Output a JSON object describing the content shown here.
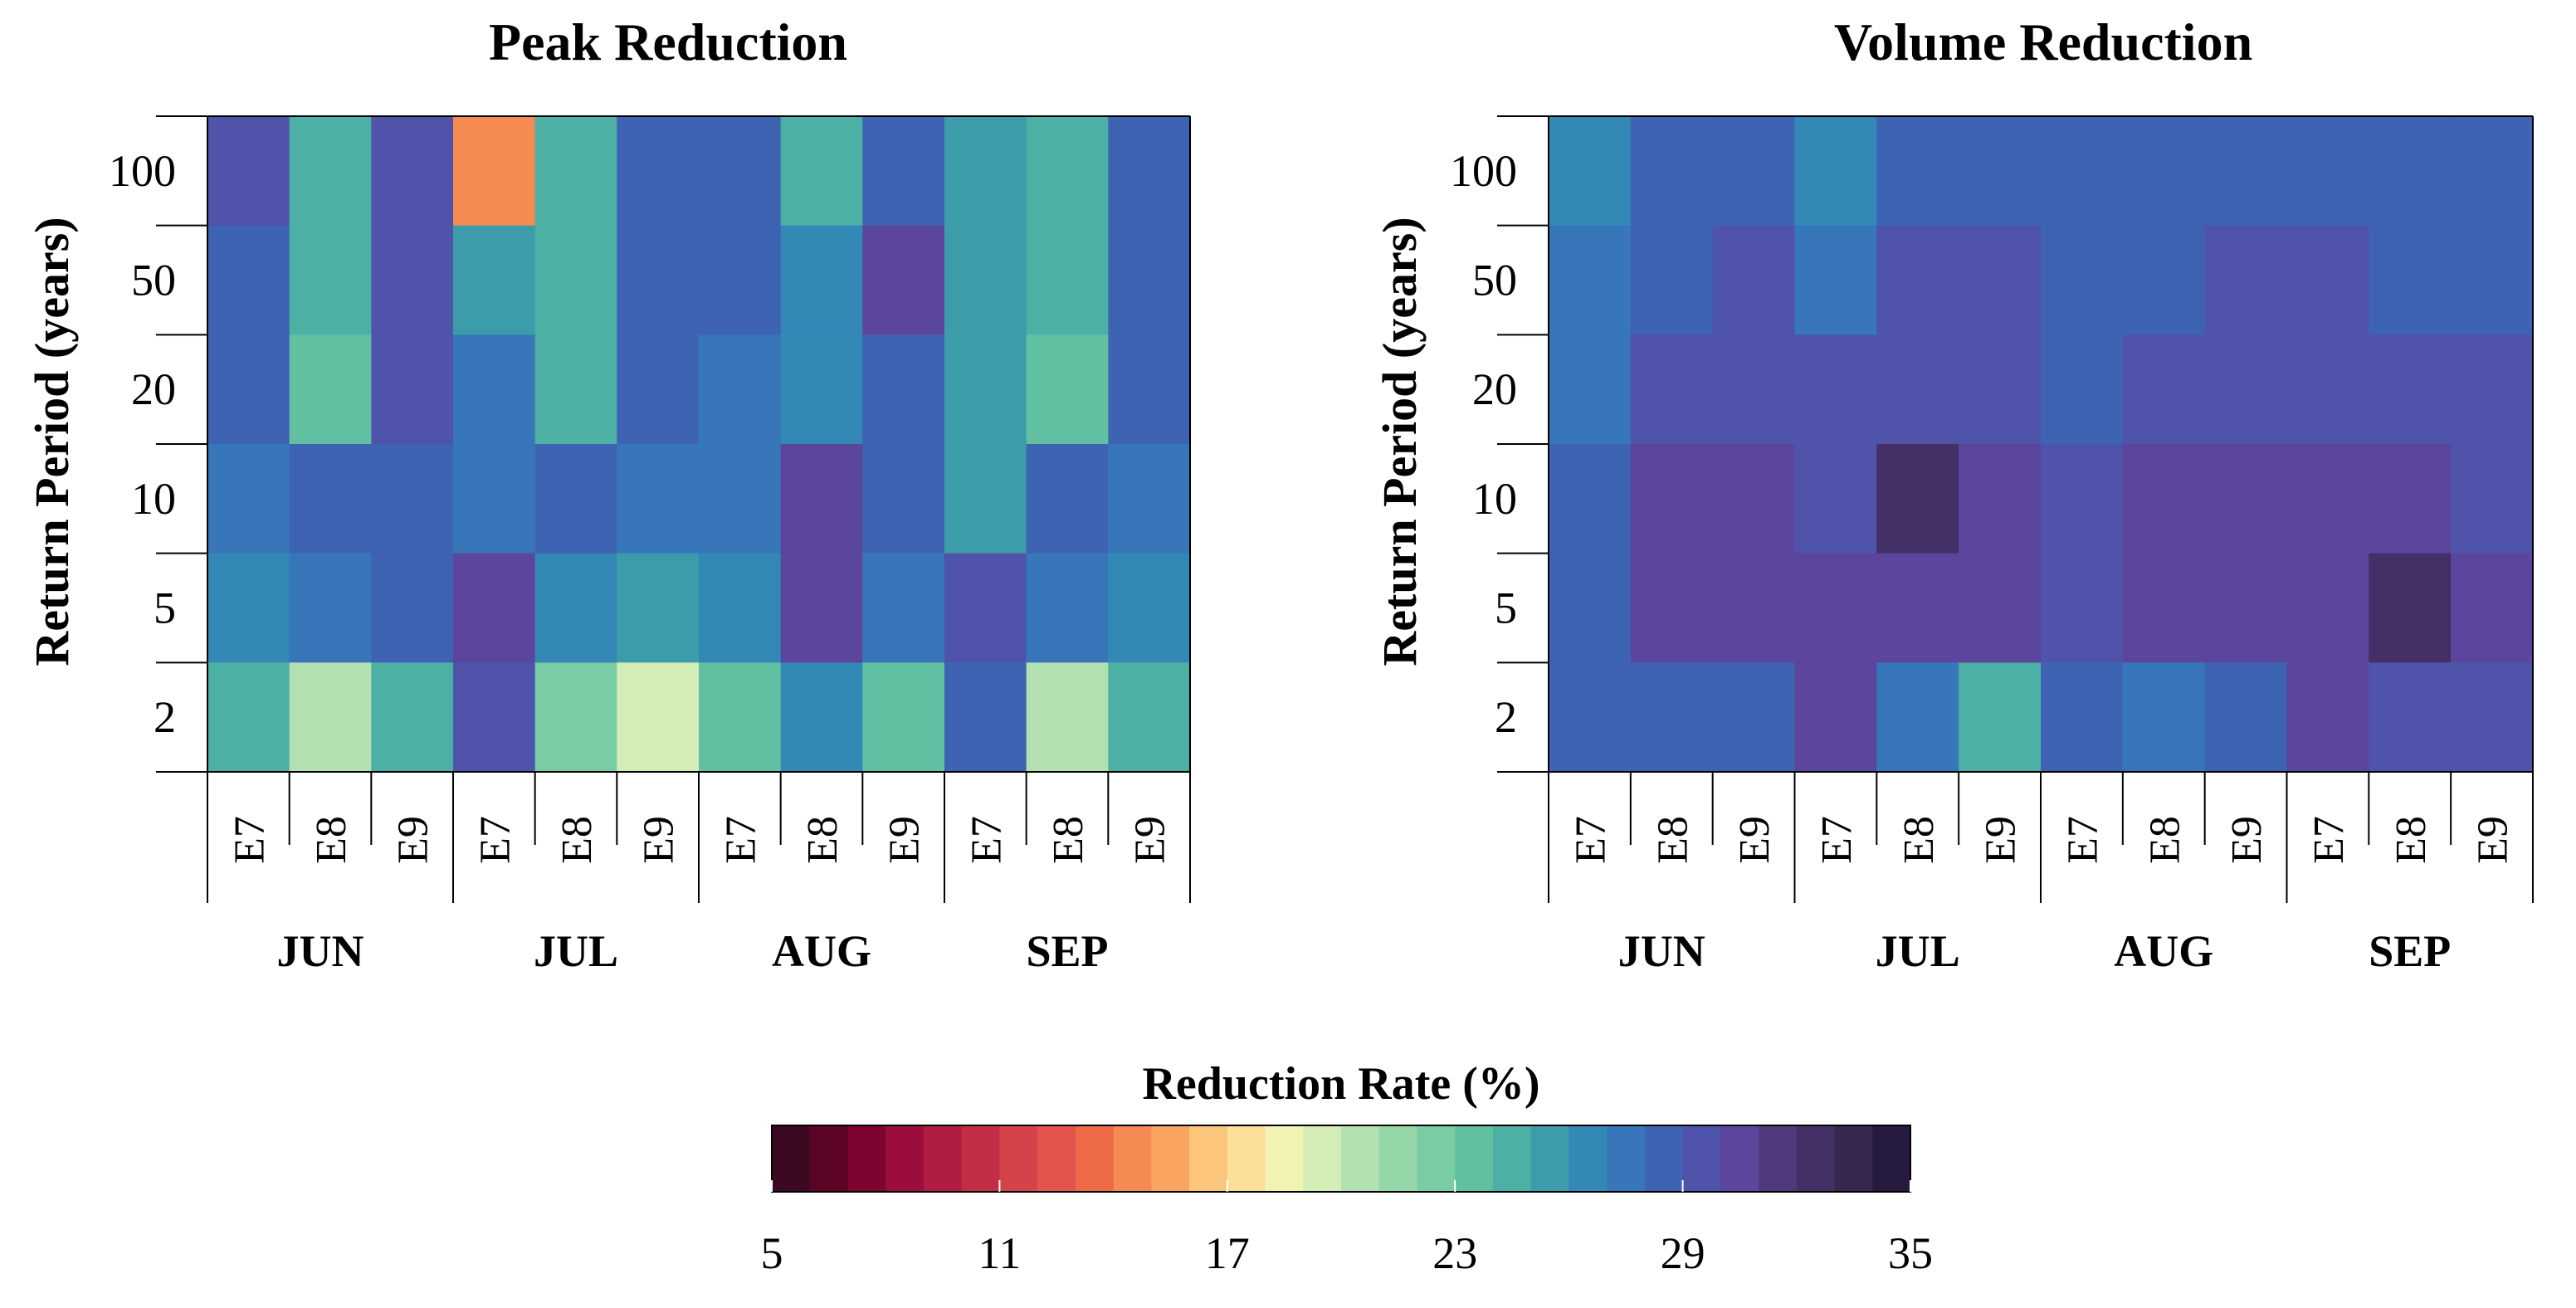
{
  "chart_data": [
    {
      "type": "heatmap",
      "title": "Peak Reduction",
      "ylabel": "Return Period (years)",
      "y_categories": [
        "100",
        "50",
        "20",
        "10",
        "5",
        "2"
      ],
      "x_categories": [
        "E7",
        "E8",
        "E9",
        "E7",
        "E8",
        "E9",
        "E7",
        "E8",
        "E9",
        "E7",
        "E8",
        "E9"
      ],
      "month_groups": [
        "JUN",
        "JUL",
        "AUG",
        "SEP"
      ],
      "values": [
        [
          29.8,
          24.4,
          29.8,
          14.8,
          24.4,
          28.6,
          28.6,
          24.4,
          28.6,
          25.4,
          24.4,
          28.6
        ],
        [
          28.6,
          24.4,
          29.8,
          25.4,
          24.4,
          28.6,
          28.6,
          26.6,
          30.2,
          25.4,
          24.4,
          28.6
        ],
        [
          28.6,
          23.2,
          29.8,
          27.0,
          24.4,
          28.6,
          27.0,
          26.6,
          28.6,
          25.4,
          23.2,
          28.6
        ],
        [
          27.0,
          28.6,
          28.6,
          27.0,
          28.6,
          27.0,
          27.0,
          30.8,
          28.6,
          25.4,
          28.6,
          27.0
        ],
        [
          26.0,
          27.0,
          28.6,
          30.8,
          26.0,
          25.4,
          26.0,
          30.8,
          27.0,
          29.8,
          27.0,
          26.0
        ],
        [
          24.4,
          20.6,
          24.4,
          29.8,
          22.6,
          19.0,
          23.6,
          26.6,
          23.6,
          28.6,
          20.6,
          24.4
        ]
      ]
    },
    {
      "type": "heatmap",
      "title": "Volume Reduction",
      "ylabel": "Return Period (years)",
      "y_categories": [
        "100",
        "50",
        "20",
        "10",
        "5",
        "2"
      ],
      "x_categories": [
        "E7",
        "E8",
        "E9",
        "E7",
        "E8",
        "E9",
        "E7",
        "E8",
        "E9",
        "E7",
        "E8",
        "E9"
      ],
      "month_groups": [
        "JUN",
        "JUL",
        "AUG",
        "SEP"
      ],
      "values": [
        [
          26.6,
          28.6,
          28.6,
          26.6,
          28.6,
          28.6,
          28.6,
          28.6,
          28.6,
          28.6,
          28.6,
          28.6
        ],
        [
          27.0,
          28.6,
          29.8,
          27.0,
          29.8,
          29.8,
          28.6,
          28.6,
          29.8,
          29.8,
          28.6,
          28.6
        ],
        [
          27.0,
          29.8,
          29.8,
          29.8,
          29.8,
          29.8,
          28.6,
          29.8,
          29.8,
          29.8,
          29.8,
          29.8
        ],
        [
          28.6,
          30.8,
          30.8,
          29.8,
          32.0,
          30.8,
          29.8,
          30.8,
          30.8,
          30.8,
          30.8,
          29.8
        ],
        [
          28.6,
          30.8,
          30.8,
          30.8,
          30.8,
          30.8,
          29.8,
          30.8,
          30.8,
          30.8,
          32.0,
          30.8
        ],
        [
          28.6,
          28.6,
          28.6,
          30.8,
          27.0,
          24.4,
          28.6,
          27.0,
          28.6,
          30.8,
          29.8,
          29.8
        ]
      ]
    }
  ],
  "colorbar": {
    "title": "Reduction Rate (%)",
    "min": 5,
    "max": 35,
    "ticks": [
      "5",
      "11",
      "17",
      "23",
      "29",
      "35"
    ],
    "colors": [
      "#3b0a22",
      "#5c0426",
      "#7e0330",
      "#9a0d3c",
      "#b01d41",
      "#c32d45",
      "#d4424a",
      "#e3544c",
      "#ee6a47",
      "#f58a53",
      "#f9a561",
      "#fbc57c",
      "#fbdf96",
      "#f1f3b2",
      "#d4ecb5",
      "#b2e0b1",
      "#95d6a8",
      "#79cca3",
      "#61c0a2",
      "#4cb0a4",
      "#3c9ca9",
      "#3388b6",
      "#3776b9",
      "#3e63b3",
      "#4f53aa",
      "#5c459d",
      "#52397b",
      "#443066",
      "#36274f",
      "#261a40"
    ]
  }
}
